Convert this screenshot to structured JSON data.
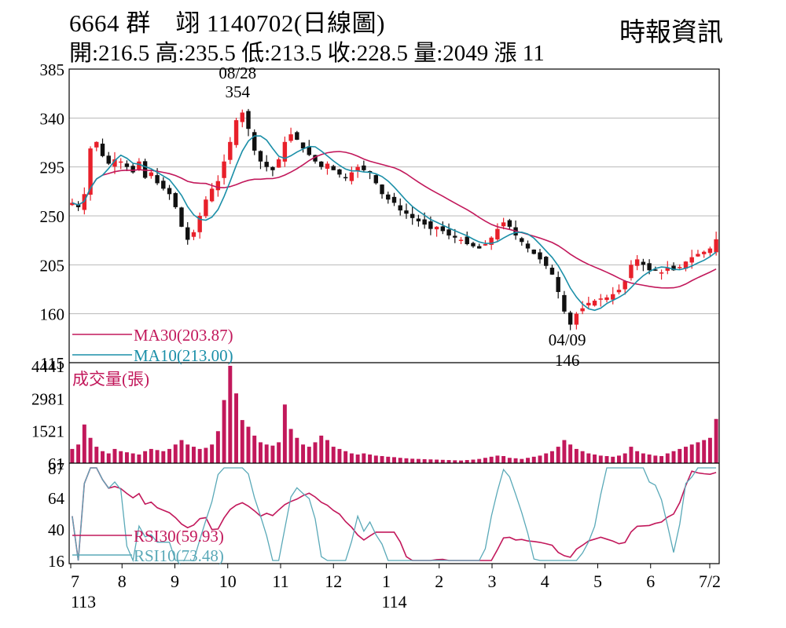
{
  "header": {
    "line1": "6664 群　翊 1140702(日線圖)",
    "line2": "開:216.5 高:235.5 低:213.5 收:228.5 量:2049 漲 11",
    "brand": "時報資訊"
  },
  "colors": {
    "up": "#e8202a",
    "down": "#111111",
    "ma30": "#c2185b",
    "ma10": "#1b8fa8",
    "volume": "#c2185b",
    "rsi30": "#c2185b",
    "rsi10": "#5aa9b8",
    "grid": "#b8b8b8"
  },
  "chart_data": [
    {
      "type": "candlestick",
      "panel": "price",
      "ylim": [
        115,
        385
      ],
      "yticks": [
        385,
        340,
        295,
        250,
        205,
        160,
        115
      ],
      "x_axis": {
        "month_labels": [
          "7",
          "8",
          "9",
          "10",
          "11",
          "12",
          "1",
          "2",
          "3",
          "4",
          "5",
          "6",
          "7/2"
        ],
        "year_labels": [
          "113",
          "114"
        ]
      },
      "annotations": [
        {
          "date": "08/28",
          "value": "354"
        },
        {
          "date": "04/09",
          "value": "146"
        }
      ],
      "legend": [
        {
          "key": "ma30",
          "label": "MA30(203.87)"
        },
        {
          "key": "ma10",
          "label": "MA10(213.00)"
        }
      ],
      "last_bar": {
        "open": 216.5,
        "high": 235.5,
        "low": 213.5,
        "close": 228.5,
        "volume": 2049,
        "change": 11
      },
      "close_approx": [
        262,
        258,
        270,
        312,
        318,
        305,
        298,
        302,
        300,
        295,
        290,
        300,
        285,
        290,
        280,
        275,
        270,
        258,
        240,
        228,
        235,
        250,
        265,
        275,
        282,
        300,
        318,
        338,
        345,
        330,
        310,
        300,
        295,
        292,
        302,
        318,
        325,
        320,
        312,
        306,
        300,
        295,
        298,
        292,
        288,
        285,
        290,
        295,
        292,
        290,
        280,
        270,
        265,
        262,
        255,
        252,
        248,
        245,
        242,
        238,
        240,
        236,
        232,
        230,
        228,
        224,
        222,
        220,
        224,
        230,
        238,
        244,
        240,
        232,
        226,
        220,
        215,
        210,
        204,
        196,
        180,
        162,
        150,
        160,
        165,
        170,
        172,
        174,
        175,
        178,
        182,
        190,
        205,
        210,
        205,
        200,
        200,
        198,
        202,
        200,
        203,
        208,
        212,
        215,
        217,
        220,
        228.5
      ]
    },
    {
      "type": "bar",
      "panel": "volume",
      "title": "成交量(張)",
      "ylim": [
        61,
        4441
      ],
      "yticks": [
        4441,
        2981,
        1521,
        61
      ],
      "values_approx": [
        700,
        900,
        1800,
        1200,
        800,
        600,
        500,
        700,
        600,
        550,
        500,
        450,
        600,
        700,
        650,
        600,
        700,
        900,
        1100,
        900,
        800,
        700,
        750,
        900,
        1500,
        2900,
        4441,
        3200,
        2000,
        1700,
        1300,
        1000,
        900,
        850,
        1000,
        2700,
        1600,
        1200,
        900,
        800,
        1000,
        1300,
        1100,
        800,
        700,
        600,
        500,
        450,
        500,
        450,
        400,
        380,
        350,
        330,
        300,
        280,
        260,
        250,
        240,
        230,
        220,
        210,
        200,
        190,
        180,
        200,
        220,
        250,
        300,
        350,
        400,
        380,
        300,
        280,
        250,
        300,
        350,
        400,
        500,
        600,
        800,
        1100,
        900,
        700,
        600,
        500,
        450,
        400,
        380,
        350,
        400,
        500,
        800,
        600,
        500,
        450,
        400,
        380,
        500,
        600,
        700,
        800,
        900,
        1000,
        1100,
        1200,
        2049
      ]
    },
    {
      "type": "line",
      "panel": "rsi",
      "ylim": [
        16,
        87
      ],
      "yticks": [
        87,
        64,
        40,
        16
      ],
      "legend": [
        {
          "key": "rsi30",
          "label": "RSI30(59.93)"
        },
        {
          "key": "rsi10",
          "label": "RSI10(73.48)"
        }
      ]
    }
  ]
}
